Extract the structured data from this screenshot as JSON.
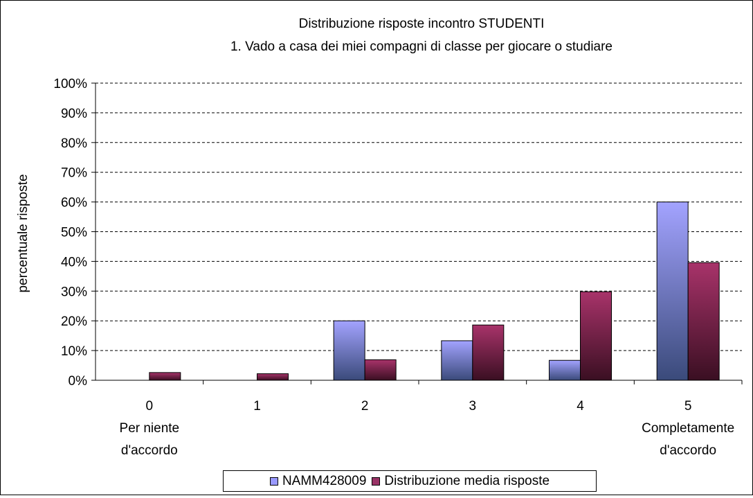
{
  "chart_data": {
    "type": "bar",
    "title": "Distribuzione risposte incontro STUDENTI",
    "subtitle": "1. Vado a casa dei miei compagni di classe per giocare o studiare",
    "ylabel": "percentuale risposte",
    "xlabel": "",
    "ylim": [
      0,
      100
    ],
    "yticks": [
      "0%",
      "10%",
      "20%",
      "30%",
      "40%",
      "50%",
      "60%",
      "70%",
      "80%",
      "90%",
      "100%"
    ],
    "grid": true,
    "legend_position": "bottom",
    "categories": [
      [
        "0",
        "Per niente",
        "d'accordo"
      ],
      [
        "1"
      ],
      [
        "2"
      ],
      [
        "3"
      ],
      [
        "4"
      ],
      [
        "5",
        "Completamente",
        "d'accordo"
      ]
    ],
    "series": [
      {
        "name": "NAMM428009",
        "color": "#9999ff",
        "values": [
          0,
          0,
          20,
          13.3,
          6.7,
          60
        ]
      },
      {
        "name": "Distribuzione media risposte",
        "color": "#993366",
        "values": [
          2.6,
          2.2,
          6.9,
          18.6,
          29.8,
          39.6
        ]
      }
    ]
  }
}
